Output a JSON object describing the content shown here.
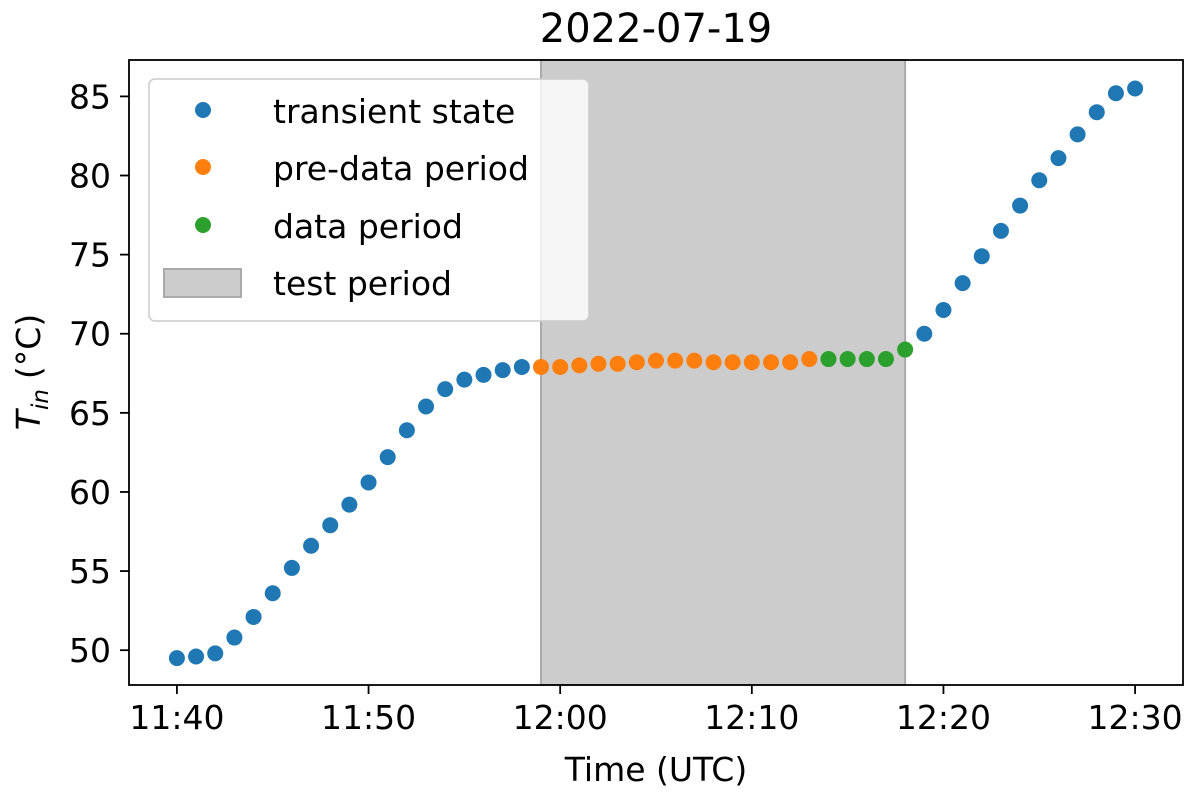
{
  "chart_data": {
    "type": "scatter",
    "title": "2022-07-19",
    "xlabel": "Time (UTC)",
    "ylabel_main": "T",
    "ylabel_sub": "in",
    "ylabel_unit": "(°C)",
    "xlim": [
      "11:37.5",
      "12:32.5"
    ],
    "ylim": [
      47.8,
      87.3
    ],
    "x_ticks": [
      "11:40",
      "11:50",
      "12:00",
      "12:10",
      "12:20",
      "12:30"
    ],
    "y_ticks": [
      50,
      55,
      60,
      65,
      70,
      75,
      80,
      85
    ],
    "grid": false,
    "legend_position": "upper-left",
    "test_period": {
      "label": "test period",
      "start": "11:59",
      "end": "12:18",
      "color": "#cccccc"
    },
    "series": [
      {
        "name": "transient state",
        "color": "#1f77b4",
        "points": [
          {
            "x": "11:40",
            "y": 49.5
          },
          {
            "x": "11:41",
            "y": 49.6
          },
          {
            "x": "11:42",
            "y": 49.8
          },
          {
            "x": "11:43",
            "y": 50.8
          },
          {
            "x": "11:44",
            "y": 52.1
          },
          {
            "x": "11:45",
            "y": 53.6
          },
          {
            "x": "11:46",
            "y": 55.2
          },
          {
            "x": "11:47",
            "y": 56.6
          },
          {
            "x": "11:48",
            "y": 57.9
          },
          {
            "x": "11:49",
            "y": 59.2
          },
          {
            "x": "11:50",
            "y": 60.6
          },
          {
            "x": "11:51",
            "y": 62.2
          },
          {
            "x": "11:52",
            "y": 63.9
          },
          {
            "x": "11:53",
            "y": 65.4
          },
          {
            "x": "11:54",
            "y": 66.5
          },
          {
            "x": "11:55",
            "y": 67.1
          },
          {
            "x": "11:56",
            "y": 67.4
          },
          {
            "x": "11:57",
            "y": 67.7
          },
          {
            "x": "11:58",
            "y": 67.9
          },
          {
            "x": "12:19",
            "y": 70.0
          },
          {
            "x": "12:20",
            "y": 71.5
          },
          {
            "x": "12:21",
            "y": 73.2
          },
          {
            "x": "12:22",
            "y": 74.9
          },
          {
            "x": "12:23",
            "y": 76.5
          },
          {
            "x": "12:24",
            "y": 78.1
          },
          {
            "x": "12:25",
            "y": 79.7
          },
          {
            "x": "12:26",
            "y": 81.1
          },
          {
            "x": "12:27",
            "y": 82.6
          },
          {
            "x": "12:28",
            "y": 84.0
          },
          {
            "x": "12:29",
            "y": 85.2
          },
          {
            "x": "12:30",
            "y": 85.5
          }
        ]
      },
      {
        "name": "pre-data period",
        "color": "#ff7f0e",
        "points": [
          {
            "x": "11:59",
            "y": 67.9
          },
          {
            "x": "12:00",
            "y": 67.9
          },
          {
            "x": "12:01",
            "y": 68.0
          },
          {
            "x": "12:02",
            "y": 68.1
          },
          {
            "x": "12:03",
            "y": 68.1
          },
          {
            "x": "12:04",
            "y": 68.2
          },
          {
            "x": "12:05",
            "y": 68.3
          },
          {
            "x": "12:06",
            "y": 68.3
          },
          {
            "x": "12:07",
            "y": 68.3
          },
          {
            "x": "12:08",
            "y": 68.2
          },
          {
            "x": "12:09",
            "y": 68.2
          },
          {
            "x": "12:10",
            "y": 68.2
          },
          {
            "x": "12:11",
            "y": 68.2
          },
          {
            "x": "12:12",
            "y": 68.2
          },
          {
            "x": "12:13",
            "y": 68.4
          }
        ]
      },
      {
        "name": "data period",
        "color": "#2ca02c",
        "points": [
          {
            "x": "12:14",
            "y": 68.4
          },
          {
            "x": "12:15",
            "y": 68.4
          },
          {
            "x": "12:16",
            "y": 68.4
          },
          {
            "x": "12:17",
            "y": 68.4
          },
          {
            "x": "12:18",
            "y": 69.0
          }
        ]
      }
    ]
  }
}
